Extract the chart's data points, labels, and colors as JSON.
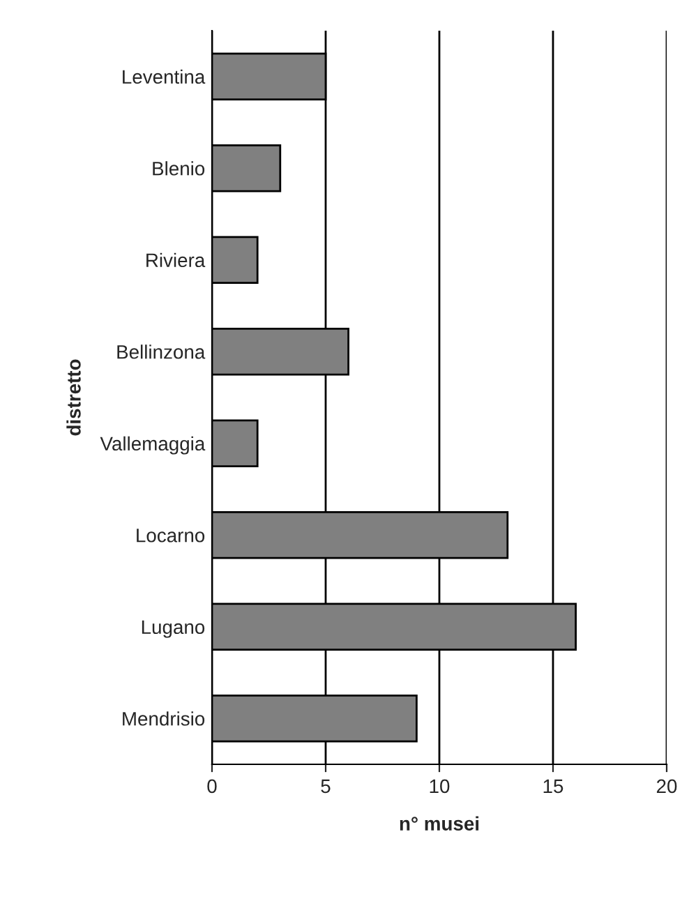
{
  "chart_data": {
    "type": "bar",
    "orientation": "horizontal",
    "xlabel": "n° musei",
    "ylabel": "distretto",
    "categories": [
      "Leventina",
      "Blenio",
      "Riviera",
      "Bellinzona",
      "Vallemaggia",
      "Locarno",
      "Lugano",
      "Mendrisio"
    ],
    "values": [
      5,
      3,
      2,
      6,
      2,
      13,
      16,
      9
    ],
    "color": "#808080",
    "xlim": [
      0,
      20
    ],
    "xticks": [
      0,
      5,
      10,
      15,
      20
    ],
    "grid": "x"
  }
}
